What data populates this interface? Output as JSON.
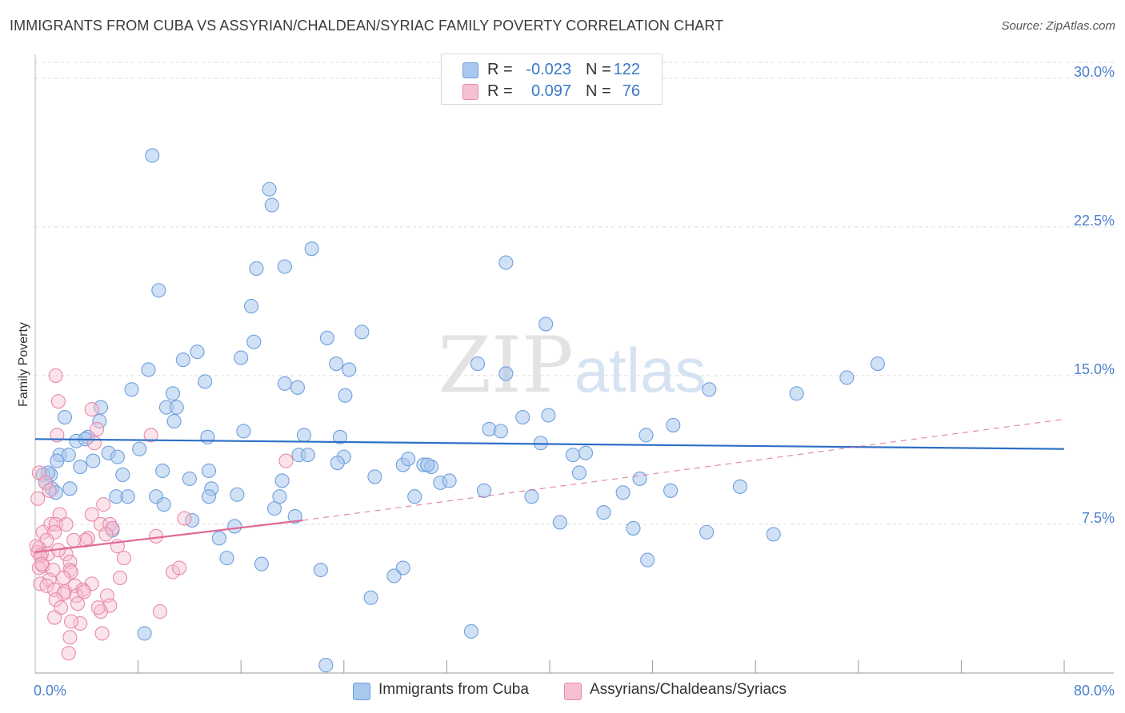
{
  "title": "IMMIGRANTS FROM CUBA VS ASSYRIAN/CHALDEAN/SYRIAC FAMILY POVERTY CORRELATION CHART",
  "source": "Source: ZipAtlas.com",
  "watermark": {
    "zip": "ZIP",
    "atlas": "atlas"
  },
  "legend": {
    "rows": [
      {
        "r_label": "R =",
        "r_value": "-0.023",
        "n_label": "N =",
        "n_value": "122"
      },
      {
        "r_label": "R =",
        "r_value": "0.097",
        "n_label": "N =",
        "n_value": "76"
      }
    ]
  },
  "bottom_legend": {
    "series1": "Immigrants from Cuba",
    "series2": "Assyrians/Chaldeans/Syriacs"
  },
  "chart_data": {
    "type": "scatter",
    "title": "IMMIGRANTS FROM CUBA VS ASSYRIAN/CHALDEAN/SYRIAC FAMILY POVERTY CORRELATION CHART",
    "xlabel": "",
    "ylabel": "Family Poverty",
    "xlim": [
      0,
      80
    ],
    "ylim": [
      0,
      30.8
    ],
    "x_tick_labels": [
      {
        "value": 0,
        "label": "0.0%"
      },
      {
        "value": 80,
        "label": "80.0%"
      }
    ],
    "x_minor_ticks": [
      8,
      16,
      24,
      32,
      40,
      48,
      56,
      64,
      72,
      80
    ],
    "y_ticks": [
      {
        "value": 7.5,
        "label": "7.5%"
      },
      {
        "value": 15,
        "label": "15.0%"
      },
      {
        "value": 22.5,
        "label": "22.5%"
      },
      {
        "value": 30,
        "label": "30.0%"
      }
    ],
    "colors": {
      "cuba_fill": "#a9c8ef",
      "cuba_stroke": "#6f9fdc",
      "cuba_line": "#2d6fc7",
      "assyrian_fill": "#f6c0d1",
      "assyrian_stroke": "#e78aa8",
      "assyrian_line": "#e06a96",
      "grid": "#dddddd",
      "axis": "#999999"
    },
    "series": [
      {
        "name": "Immigrants from Cuba",
        "trend": {
          "x0": 0,
          "y0": 11.8,
          "x1": 80,
          "y1": 11.3,
          "style": "solid"
        },
        "points": [
          [
            9.1,
            26.1
          ],
          [
            18.2,
            24.4
          ],
          [
            18.4,
            23.6
          ],
          [
            21.5,
            21.4
          ],
          [
            17.2,
            20.4
          ],
          [
            19.4,
            20.5
          ],
          [
            36.6,
            20.7
          ],
          [
            9.6,
            19.3
          ],
          [
            16.8,
            18.5
          ],
          [
            39.7,
            17.6
          ],
          [
            25.4,
            17.2
          ],
          [
            22.7,
            16.9
          ],
          [
            17.0,
            16.7
          ],
          [
            12.6,
            16.2
          ],
          [
            11.5,
            15.8
          ],
          [
            16.0,
            15.9
          ],
          [
            23.4,
            15.6
          ],
          [
            24.4,
            15.3
          ],
          [
            34.4,
            15.6
          ],
          [
            8.8,
            15.3
          ],
          [
            36.6,
            15.1
          ],
          [
            65.5,
            15.6
          ],
          [
            13.2,
            14.7
          ],
          [
            19.4,
            14.6
          ],
          [
            20.4,
            14.4
          ],
          [
            7.5,
            14.3
          ],
          [
            10.7,
            14.1
          ],
          [
            24.1,
            14.0
          ],
          [
            63.1,
            14.9
          ],
          [
            59.2,
            14.1
          ],
          [
            52.4,
            14.3
          ],
          [
            5.1,
            13.4
          ],
          [
            10.2,
            13.4
          ],
          [
            11.0,
            13.4
          ],
          [
            10.8,
            12.7
          ],
          [
            5.0,
            12.7
          ],
          [
            2.3,
            12.9
          ],
          [
            37.9,
            12.9
          ],
          [
            39.9,
            13.0
          ],
          [
            49.6,
            12.5
          ],
          [
            16.2,
            12.2
          ],
          [
            20.9,
            12.0
          ],
          [
            13.4,
            11.9
          ],
          [
            23.7,
            11.9
          ],
          [
            4.1,
            11.9
          ],
          [
            3.2,
            11.7
          ],
          [
            3.9,
            11.8
          ],
          [
            5.7,
            11.1
          ],
          [
            35.3,
            12.3
          ],
          [
            36.2,
            12.2
          ],
          [
            39.3,
            11.6
          ],
          [
            47.5,
            12.0
          ],
          [
            1.9,
            11.0
          ],
          [
            2.6,
            11.0
          ],
          [
            1.7,
            10.7
          ],
          [
            4.5,
            10.7
          ],
          [
            6.4,
            10.9
          ],
          [
            8.1,
            11.3
          ],
          [
            41.8,
            11.0
          ],
          [
            42.8,
            11.1
          ],
          [
            20.5,
            11.0
          ],
          [
            21.2,
            11.0
          ],
          [
            24.0,
            10.9
          ],
          [
            23.5,
            10.6
          ],
          [
            28.6,
            10.5
          ],
          [
            30.2,
            10.5
          ],
          [
            29.0,
            10.8
          ],
          [
            30.8,
            10.4
          ],
          [
            30.5,
            10.5
          ],
          [
            3.5,
            10.4
          ],
          [
            0.6,
            10.0
          ],
          [
            1.2,
            10.0
          ],
          [
            6.8,
            10.0
          ],
          [
            9.9,
            10.2
          ],
          [
            13.5,
            10.2
          ],
          [
            12.0,
            9.8
          ],
          [
            19.2,
            9.7
          ],
          [
            26.4,
            9.9
          ],
          [
            31.5,
            9.6
          ],
          [
            32.2,
            9.7
          ],
          [
            42.3,
            10.1
          ],
          [
            47.0,
            9.8
          ],
          [
            0.8,
            9.6
          ],
          [
            1.3,
            9.3
          ],
          [
            2.7,
            9.3
          ],
          [
            6.3,
            8.9
          ],
          [
            7.2,
            8.9
          ],
          [
            9.4,
            8.9
          ],
          [
            13.7,
            9.3
          ],
          [
            13.5,
            8.9
          ],
          [
            15.7,
            9.0
          ],
          [
            34.9,
            9.2
          ],
          [
            38.6,
            8.9
          ],
          [
            45.7,
            9.1
          ],
          [
            49.4,
            9.2
          ],
          [
            54.8,
            9.4
          ],
          [
            18.6,
            8.3
          ],
          [
            20.2,
            7.9
          ],
          [
            40.8,
            7.6
          ],
          [
            44.2,
            8.1
          ],
          [
            6.0,
            7.2
          ],
          [
            12.2,
            7.7
          ],
          [
            15.5,
            7.4
          ],
          [
            46.5,
            7.3
          ],
          [
            52.2,
            7.1
          ],
          [
            57.4,
            7.0
          ],
          [
            14.3,
            6.8
          ],
          [
            14.9,
            5.8
          ],
          [
            17.6,
            5.5
          ],
          [
            22.2,
            5.2
          ],
          [
            28.6,
            5.3
          ],
          [
            27.9,
            4.9
          ],
          [
            47.6,
            5.7
          ],
          [
            26.1,
            3.8
          ],
          [
            8.5,
            2.0
          ],
          [
            33.9,
            2.1
          ],
          [
            22.6,
            0.4
          ],
          [
            1.0,
            10.1
          ],
          [
            1.6,
            9.1
          ],
          [
            19.0,
            8.9
          ],
          [
            10.0,
            8.5
          ],
          [
            29.5,
            8.9
          ]
        ]
      },
      {
        "name": "Assyrians/Chaldeans/Syriacs",
        "trend": {
          "x0": 0,
          "y0": 6.1,
          "x1": 20.8,
          "y1": 7.7,
          "style": "solid"
        },
        "trend_extended": {
          "x0": 20.8,
          "y0": 7.7,
          "x1": 80,
          "y1": 12.8,
          "style": "dashed"
        },
        "points": [
          [
            1.6,
            15.0
          ],
          [
            1.8,
            13.7
          ],
          [
            4.4,
            13.3
          ],
          [
            4.8,
            12.3
          ],
          [
            1.7,
            12.0
          ],
          [
            9.0,
            12.0
          ],
          [
            4.6,
            11.6
          ],
          [
            0.3,
            10.1
          ],
          [
            19.5,
            10.7
          ],
          [
            0.8,
            9.6
          ],
          [
            1.1,
            9.2
          ],
          [
            0.2,
            8.8
          ],
          [
            5.3,
            8.5
          ],
          [
            1.9,
            8.0
          ],
          [
            4.4,
            8.0
          ],
          [
            11.6,
            7.8
          ],
          [
            1.2,
            7.5
          ],
          [
            1.6,
            7.5
          ],
          [
            2.4,
            7.5
          ],
          [
            5.1,
            7.5
          ],
          [
            5.8,
            7.5
          ],
          [
            6.0,
            7.3
          ],
          [
            0.6,
            7.1
          ],
          [
            1.5,
            7.1
          ],
          [
            5.5,
            7.0
          ],
          [
            9.4,
            6.9
          ],
          [
            0.9,
            6.7
          ],
          [
            4.1,
            6.8
          ],
          [
            3.9,
            6.7
          ],
          [
            0.3,
            6.3
          ],
          [
            6.4,
            6.4
          ],
          [
            0.2,
            6.1
          ],
          [
            0.5,
            6.0
          ],
          [
            1.0,
            6.0
          ],
          [
            2.4,
            6.0
          ],
          [
            0.4,
            5.9
          ],
          [
            6.9,
            5.8
          ],
          [
            2.7,
            5.6
          ],
          [
            0.6,
            5.4
          ],
          [
            1.4,
            5.2
          ],
          [
            2.7,
            5.2
          ],
          [
            0.3,
            5.3
          ],
          [
            2.8,
            5.1
          ],
          [
            10.7,
            5.1
          ],
          [
            11.2,
            5.3
          ],
          [
            6.6,
            4.8
          ],
          [
            1.1,
            4.7
          ],
          [
            0.4,
            4.5
          ],
          [
            0.9,
            4.4
          ],
          [
            3.1,
            4.4
          ],
          [
            4.4,
            4.5
          ],
          [
            1.5,
            4.2
          ],
          [
            2.3,
            4.1
          ],
          [
            3.7,
            4.2
          ],
          [
            2.2,
            4.0
          ],
          [
            3.2,
            3.9
          ],
          [
            5.6,
            3.9
          ],
          [
            1.6,
            3.7
          ],
          [
            3.3,
            3.5
          ],
          [
            5.8,
            3.4
          ],
          [
            2.0,
            3.3
          ],
          [
            5.1,
            3.1
          ],
          [
            9.7,
            3.1
          ],
          [
            1.5,
            2.8
          ],
          [
            3.5,
            2.5
          ],
          [
            2.8,
            2.6
          ],
          [
            5.2,
            2.0
          ],
          [
            2.7,
            1.8
          ],
          [
            2.6,
            1.0
          ],
          [
            0.5,
            5.5
          ],
          [
            1.8,
            6.2
          ],
          [
            3.0,
            6.7
          ],
          [
            0.1,
            6.4
          ],
          [
            2.2,
            4.8
          ],
          [
            3.8,
            4.1
          ],
          [
            4.9,
            3.3
          ]
        ]
      }
    ]
  }
}
